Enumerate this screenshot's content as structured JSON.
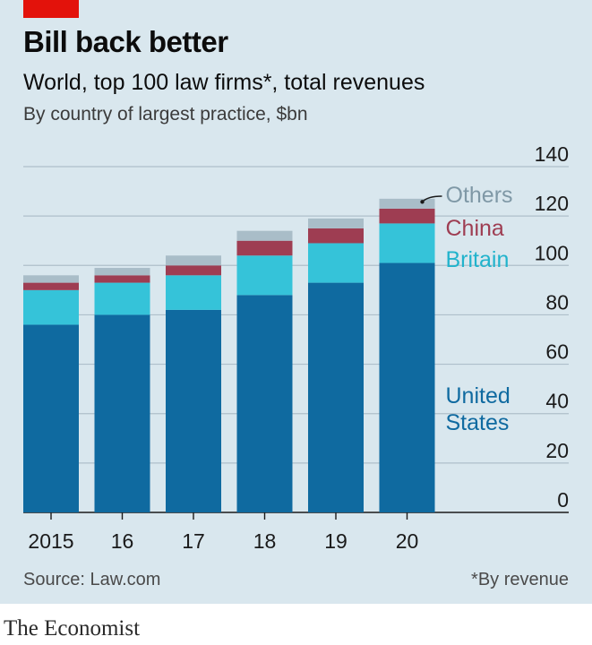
{
  "header": {
    "title": "Bill back better",
    "subtitle": "World, top 100 law firms*, total revenues",
    "units": "By country of largest practice, $bn"
  },
  "footer": {
    "source": "Source: Law.com",
    "footnote": "*By revenue",
    "brand": "The Economist"
  },
  "colors": {
    "accent": "#e3120b",
    "background": "#d9e7ee",
    "united_states": "#0f6aa0",
    "britain": "#35c3d9",
    "china": "#9e3d52",
    "others": "#a9bdc8"
  },
  "chart_data": {
    "type": "bar",
    "stacked": true,
    "categories": [
      "2015",
      "16",
      "17",
      "18",
      "19",
      "20"
    ],
    "series": [
      {
        "name": "United States",
        "label_lines": [
          "United",
          "States"
        ],
        "color": "#0f6aa0",
        "values": [
          76,
          80,
          82,
          88,
          93,
          101
        ]
      },
      {
        "name": "Britain",
        "label_lines": [
          "Britain"
        ],
        "color": "#35c3d9",
        "values": [
          14,
          13,
          14,
          16,
          16,
          16
        ]
      },
      {
        "name": "China",
        "label_lines": [
          "China"
        ],
        "color": "#9e3d52",
        "values": [
          3,
          3,
          4,
          6,
          6,
          6
        ]
      },
      {
        "name": "Others",
        "label_lines": [
          "Others"
        ],
        "color": "#a9bdc8",
        "values": [
          3,
          3,
          4,
          4,
          4,
          4
        ]
      }
    ],
    "ylim": [
      0,
      140
    ],
    "yticks": [
      0,
      20,
      40,
      60,
      80,
      100,
      120,
      140
    ],
    "y_axis_position": "right",
    "grid": true,
    "legend": "direct labels to the right of the last bar"
  }
}
